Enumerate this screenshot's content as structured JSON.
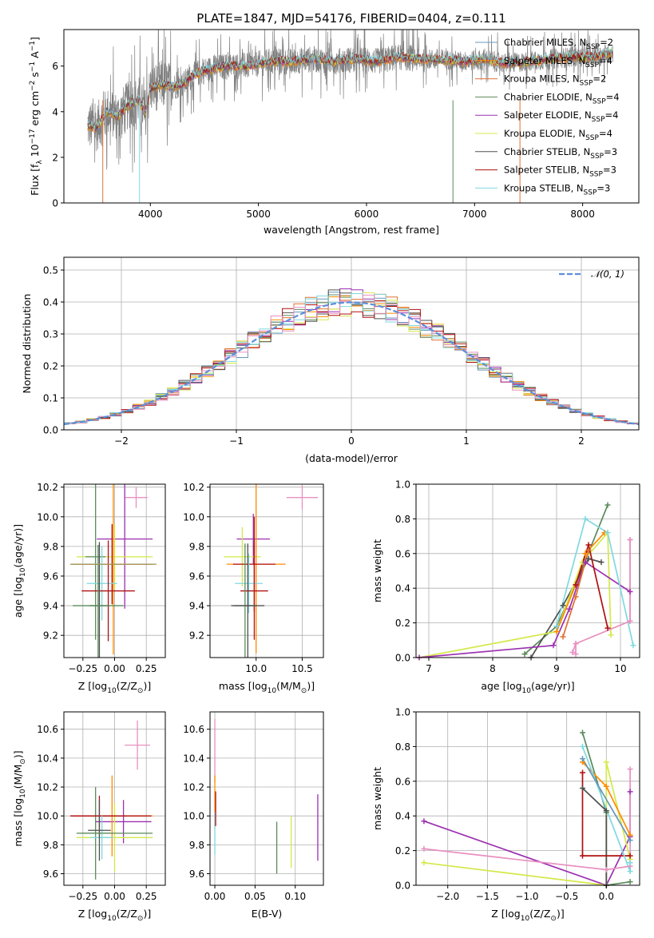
{
  "title": "PLATE=1847, MJD=54176, FIBERID=0404, z=0.111",
  "chart_data": [
    {
      "id": "spectrum",
      "type": "line",
      "xlabel": "wavelength [Angstrom, rest frame]",
      "ylabel": "Flux [f_λ 10^-17 erg cm^-2 s^-1 A^-1]",
      "xlim": [
        3200,
        8520
      ],
      "ylim": [
        0,
        7.6
      ],
      "xticks": [
        4000,
        5000,
        6000,
        7000,
        8000
      ],
      "yticks": [
        0,
        2,
        4,
        6
      ],
      "grid": false,
      "legend": "top-right",
      "data_series": {
        "name": "",
        "color": "#808080",
        "spine_x": [
          3420,
          3500,
          3600,
          3700,
          3800,
          3900,
          3950,
          4000,
          4100,
          4200,
          4300,
          4400,
          4500,
          4700,
          4900,
          5100,
          5300,
          5500,
          5700,
          5900,
          6100,
          6300,
          6500,
          6700,
          6900,
          7100,
          7300,
          7500,
          7700,
          7900,
          8100,
          8280
        ],
        "spine_y": [
          3.4,
          3.3,
          4.0,
          3.8,
          4.3,
          4.5,
          3.9,
          5.0,
          5.2,
          5.1,
          5.2,
          5.6,
          5.8,
          6.0,
          6.0,
          6.2,
          6.2,
          6.3,
          6.2,
          6.3,
          6.2,
          6.4,
          6.3,
          6.3,
          6.2,
          6.3,
          6.1,
          6.2,
          6.3,
          6.4,
          6.4,
          6.6
        ]
      },
      "series": [
        {
          "name": "Chabrier MILES, N_SSP=2",
          "color": "#6897bb"
        },
        {
          "name": "Salpeter MILES, N_SSP=4",
          "color": "#ff8c00"
        },
        {
          "name": "Kroupa MILES, N_SSP=2",
          "color": "#e07030"
        },
        {
          "name": "Chabrier ELODIE, N_SSP=4",
          "color": "#5a8a5a"
        },
        {
          "name": "Salpeter ELODIE, N_SSP=4",
          "color": "#9b30b0"
        },
        {
          "name": "Kroupa ELODIE, N_SSP=4",
          "color": "#d4e84a"
        },
        {
          "name": "Chabrier STELIB, N_SSP=3",
          "color": "#505050"
        },
        {
          "name": "Salpeter STELIB, N_SSP=3",
          "color": "#b01010"
        },
        {
          "name": "Kroupa STELIB, N_SSP=3",
          "color": "#7fd8e0"
        }
      ]
    },
    {
      "id": "residuals",
      "type": "line",
      "xlabel": "(data-model)/error",
      "ylabel": "Normed distribution",
      "xlim": [
        -2.5,
        2.5
      ],
      "ylim": [
        0,
        0.54
      ],
      "xticks": [
        -2,
        -1,
        0,
        1,
        2
      ],
      "xticklabels": [
        "−2",
        "−1",
        "0",
        "1",
        "2"
      ],
      "yticks": [
        0,
        0.1,
        0.2,
        0.3,
        0.4,
        0.5
      ],
      "yticklabels": [
        "0.0",
        "0.1",
        "0.2",
        "0.3",
        "0.4",
        "0.5"
      ],
      "grid": true,
      "legend": "top-right",
      "gaussian_label": "𝒩(0, 1)",
      "gaussian_color": "#5b8fd9",
      "bin_width": 0.1,
      "hist_colors": [
        "#6897bb",
        "#ff8c00",
        "#e07030",
        "#5a8a5a",
        "#9b30b0",
        "#d4e84a",
        "#505050",
        "#b01010",
        "#7fd8e0",
        "#e890c0"
      ]
    },
    {
      "id": "age-vs-Z",
      "type": "scatter",
      "xlabel": "Z [log10(Z/Z⊙)]",
      "ylabel": "age  [log10(age/yr)]",
      "xlim": [
        -0.4,
        0.4
      ],
      "ylim": [
        9.05,
        10.22
      ],
      "xticks": [
        -0.25,
        0,
        0.25
      ],
      "xticklabels": [
        "−0.25",
        "0.00",
        "0.25"
      ],
      "yticks": [
        9.2,
        9.4,
        9.6,
        9.8,
        10.0,
        10.2
      ],
      "yticklabels": [
        "9.2",
        "9.4",
        "9.6",
        "9.8",
        "10.0",
        "10.2"
      ],
      "grid": true,
      "errorbars": [
        {
          "x": 0.17,
          "xerr": 0.09,
          "y": 10.13,
          "yerr": 0.07,
          "color": "#e890c0"
        },
        {
          "x": 0.08,
          "xerr": 0.22,
          "y": 9.85,
          "yerr": 0.47,
          "color": "#9b30b0"
        },
        {
          "x": 0.0,
          "xerr": 0.3,
          "y": 9.73,
          "yerr": 0.22,
          "color": "#d4e84a"
        },
        {
          "x": -0.01,
          "xerr": 0.34,
          "y": 9.68,
          "yerr": 0.61,
          "color": "#ff8c00"
        },
        {
          "x": -0.02,
          "xerr": 0.32,
          "y": 9.68,
          "yerr": 0.27,
          "color": "#b01010"
        },
        {
          "x": -0.15,
          "xerr": 0.08,
          "y": 9.73,
          "yerr": 0.56,
          "color": "#5a8a5a"
        },
        {
          "x": -0.1,
          "xerr": 0.12,
          "y": 9.55,
          "yerr": 0.25,
          "color": "#7fd8e0"
        },
        {
          "x": -0.05,
          "xerr": 0.21,
          "y": 9.5,
          "yerr": 0.34,
          "color": "#b01010"
        },
        {
          "x": -0.12,
          "xerr": 0.08,
          "y": 9.4,
          "yerr": 0.43,
          "color": "#505050"
        },
        {
          "x": -0.13,
          "xerr": 0.2,
          "y": 9.4,
          "yerr": 0.41,
          "color": "#5a8a5a"
        },
        {
          "x": -0.01,
          "xerr": 0.34,
          "y": 9.68,
          "yerr": 0.0,
          "color": "#a0a060"
        }
      ]
    },
    {
      "id": "age-vs-mass",
      "type": "scatter",
      "xlabel": "mass [log10(M/M⊙)]",
      "ylabel": "",
      "xlim": [
        9.5,
        10.73
      ],
      "ylim": [
        9.05,
        10.22
      ],
      "xticks": [
        10.0,
        10.5
      ],
      "xticklabels": [
        "10.0",
        "10.5"
      ],
      "yticks": [
        9.2,
        9.4,
        9.6,
        9.8,
        10.0,
        10.2
      ],
      "yticklabels": [
        "9.2",
        "9.4",
        "9.6",
        "9.8",
        "10.0",
        "10.2"
      ],
      "grid": true,
      "errorbars": [
        {
          "x": 10.5,
          "xerr": 0.17,
          "y": 10.13,
          "yerr": 0.08,
          "color": "#e890c0"
        },
        {
          "x": 9.97,
          "xerr": 0.18,
          "y": 9.85,
          "yerr": 0.17,
          "color": "#9b30b0"
        },
        {
          "x": 9.85,
          "xerr": 0.2,
          "y": 9.73,
          "yerr": 0.2,
          "color": "#d4e84a"
        },
        {
          "x": 10.0,
          "xerr": 0.32,
          "y": 9.68,
          "yerr": 0.6,
          "color": "#ff8c00"
        },
        {
          "x": 9.98,
          "xerr": 0.23,
          "y": 9.68,
          "yerr": 0.32,
          "color": "#b01010"
        },
        {
          "x": 9.92,
          "xerr": 0.15,
          "y": 9.55,
          "yerr": 0.2,
          "color": "#7fd8e0"
        },
        {
          "x": 9.98,
          "xerr": 0.15,
          "y": 9.5,
          "yerr": 0.33,
          "color": "#b01010"
        },
        {
          "x": 9.88,
          "xerr": 0.12,
          "y": 9.4,
          "yerr": 0.42,
          "color": "#5a8a5a"
        },
        {
          "x": 9.91,
          "xerr": 0.18,
          "y": 9.4,
          "yerr": 0.42,
          "color": "#505050"
        }
      ]
    },
    {
      "id": "weight-vs-age",
      "type": "line",
      "xlabel": "age  [log10(age/yr)]",
      "ylabel": "mass weight",
      "xlim": [
        6.8,
        10.3
      ],
      "ylim": [
        0,
        1.0
      ],
      "xticks": [
        7,
        8,
        9,
        10
      ],
      "yticks": [
        0,
        0.2,
        0.4,
        0.6,
        0.8,
        1.0
      ],
      "yticklabels": [
        "0.0",
        "0.2",
        "0.4",
        "0.6",
        "0.8",
        "1.0"
      ],
      "grid": true,
      "series": [
        {
          "color": "#5a8a5a",
          "x": [
            8.5,
            9.0,
            9.3,
            9.8
          ],
          "y": [
            0.02,
            0.18,
            0.42,
            0.88
          ]
        },
        {
          "color": "#505050",
          "x": [
            8.6,
            9.1,
            9.5,
            9.7
          ],
          "y": [
            0.0,
            0.3,
            0.57,
            0.55
          ]
        },
        {
          "color": "#d4e84a",
          "x": [
            6.85,
            9.0,
            9.4,
            9.8,
            9.85
          ],
          "y": [
            0.0,
            0.15,
            0.55,
            0.72,
            0.13
          ]
        },
        {
          "color": "#9b30b0",
          "x": [
            6.85,
            8.95,
            9.2,
            9.45,
            10.15
          ],
          "y": [
            0.0,
            0.07,
            0.28,
            0.55,
            0.38
          ]
        },
        {
          "color": "#ff8c00",
          "x": [
            9.0,
            9.3,
            9.45,
            9.75
          ],
          "y": [
            0.15,
            0.42,
            0.6,
            0.72
          ]
        },
        {
          "color": "#e07030",
          "x": [
            9.1,
            9.3,
            9.5
          ],
          "y": [
            0.12,
            0.35,
            0.62
          ]
        },
        {
          "color": "#b01010",
          "x": [
            9.3,
            9.5,
            9.8
          ],
          "y": [
            0.42,
            0.65,
            0.17
          ]
        },
        {
          "color": "#7fd8e0",
          "x": [
            9.0,
            9.45,
            9.8,
            10.2
          ],
          "y": [
            0.18,
            0.8,
            0.72,
            0.07
          ]
        },
        {
          "color": "#e890c0",
          "x": [
            9.25,
            9.3,
            10.15,
            10.15
          ],
          "y": [
            0.03,
            0.08,
            0.21,
            0.68
          ]
        },
        {
          "color": "#e890c0",
          "x": [
            9.3,
            9.3
          ],
          "y": [
            0.02,
            0.08
          ]
        },
        {
          "color": "#e890c0",
          "x": [
            10.15,
            10.15
          ],
          "y": [
            0.21,
            0.68
          ]
        }
      ]
    },
    {
      "id": "mass-vs-Z",
      "type": "scatter",
      "xlabel": "Z [log10(Z/Z⊙)]",
      "ylabel": "mass [log10(M/M⊙)]",
      "xlim": [
        -0.4,
        0.4
      ],
      "ylim": [
        9.52,
        10.72
      ],
      "xticks": [
        -0.25,
        0,
        0.25
      ],
      "xticklabels": [
        "−0.25",
        "0.00",
        "0.25"
      ],
      "yticks": [
        9.6,
        9.8,
        10.0,
        10.2,
        10.4,
        10.6
      ],
      "yticklabels": [
        "9.6",
        "9.8",
        "10.0",
        "10.2",
        "10.4",
        "10.6"
      ],
      "grid": true,
      "errorbars": [
        {
          "x": 0.18,
          "xerr": 0.1,
          "y": 10.49,
          "yerr": 0.17,
          "color": "#e890c0"
        },
        {
          "x": 0.07,
          "xerr": 0.22,
          "y": 9.96,
          "yerr": 0.15,
          "color": "#9b30b0"
        },
        {
          "x": 0.0,
          "xerr": 0.3,
          "y": 9.85,
          "yerr": 0.24,
          "color": "#d4e84a"
        },
        {
          "x": -0.02,
          "xerr": 0.32,
          "y": 10.0,
          "yerr": 0.28,
          "color": "#ff8c00"
        },
        {
          "x": -0.03,
          "xerr": 0.32,
          "y": 10.0,
          "yerr": 0.0,
          "color": "#b01010"
        },
        {
          "x": -0.15,
          "xerr": 0.12,
          "y": 9.88,
          "yerr": 0.32,
          "color": "#5a8a5a"
        },
        {
          "x": -0.12,
          "xerr": 0.22,
          "y": 10.0,
          "yerr": 0.14,
          "color": "#b01010"
        },
        {
          "x": -0.1,
          "xerr": 0.09,
          "y": 9.85,
          "yerr": 0.15,
          "color": "#7fd8e0"
        },
        {
          "x": -0.12,
          "xerr": 0.09,
          "y": 9.9,
          "yerr": 0.21,
          "color": "#505050"
        },
        {
          "x": 0.0,
          "xerr": 0.3,
          "y": 9.88,
          "yerr": 0.0,
          "color": "#5a8a5a"
        }
      ]
    },
    {
      "id": "mass-vs-ebv",
      "type": "scatter",
      "xlabel": "E(B-V)",
      "ylabel": "",
      "xlim": [
        -0.006,
        0.135
      ],
      "ylim": [
        9.52,
        10.72
      ],
      "xticks": [
        0.0,
        0.05,
        0.1
      ],
      "xticklabels": [
        "0.00",
        "0.05",
        "0.10"
      ],
      "yticks": [
        9.6,
        9.8,
        10.0,
        10.2,
        10.4,
        10.6
      ],
      "yticklabels": [
        "9.6",
        "9.8",
        "10.0",
        "10.2",
        "10.4",
        "10.6"
      ],
      "grid": true,
      "errorbars": [
        {
          "x": 0.0,
          "xerr": 0.0,
          "y": 10.45,
          "yerr": 0.22,
          "color": "#e890c0"
        },
        {
          "x": 0.0,
          "xerr": 0.0,
          "y": 10.1,
          "yerr": 0.18,
          "color": "#ff8c00"
        },
        {
          "x": 0.0,
          "xerr": 0.0,
          "y": 9.88,
          "yerr": 0.15,
          "color": "#7fd8e0"
        },
        {
          "x": 0.001,
          "xerr": 0.0,
          "y": 10.05,
          "yerr": 0.12,
          "color": "#b01010"
        },
        {
          "x": 0.077,
          "xerr": 0.0,
          "y": 9.78,
          "yerr": 0.18,
          "color": "#5a8a5a"
        },
        {
          "x": 0.095,
          "xerr": 0.0,
          "y": 9.82,
          "yerr": 0.18,
          "color": "#d4e84a"
        },
        {
          "x": 0.128,
          "xerr": 0.0,
          "y": 9.92,
          "yerr": 0.23,
          "color": "#9b30b0"
        }
      ]
    },
    {
      "id": "weight-vs-Z",
      "type": "line",
      "xlabel": "Z [log10(Z/Z⊙)]",
      "ylabel": "mass weight",
      "xlim": [
        -2.4,
        0.42
      ],
      "ylim": [
        0,
        1.0
      ],
      "xticks": [
        -2.0,
        -1.5,
        -1.0,
        -0.5,
        0.0
      ],
      "xticklabels": [
        "−2.0",
        "−1.5",
        "−1.0",
        "−0.5",
        "0.0"
      ],
      "yticks": [
        0,
        0.2,
        0.4,
        0.6,
        0.8,
        1.0
      ],
      "yticklabels": [
        "0.0",
        "0.2",
        "0.4",
        "0.6",
        "0.8",
        "1.0"
      ],
      "grid": true,
      "series": [
        {
          "color": "#9b30b0",
          "x": [
            -2.3,
            0.0,
            0.3,
            0.3
          ],
          "y": [
            0.37,
            0.0,
            0.28,
            0.54
          ]
        },
        {
          "color": "#e890c0",
          "x": [
            -2.3,
            0.0,
            0.3,
            0.3
          ],
          "y": [
            0.21,
            0.09,
            0.11,
            0.67
          ]
        },
        {
          "color": "#d4e84a",
          "x": [
            -2.3,
            0.0,
            0.0,
            0.3
          ],
          "y": [
            0.13,
            0.0,
            0.71,
            0.15
          ]
        },
        {
          "color": "#5a8a5a",
          "x": [
            -0.3,
            0.0,
            0.0,
            0.3
          ],
          "y": [
            0.88,
            0.42,
            0.0,
            0.02
          ]
        },
        {
          "color": "#505050",
          "x": [
            -0.3,
            0.0,
            0.0
          ],
          "y": [
            0.56,
            0.43,
            0.0
          ]
        },
        {
          "color": "#ff8c00",
          "x": [
            -0.3,
            0.0,
            0.3
          ],
          "y": [
            0.71,
            0.57,
            0.29
          ]
        },
        {
          "color": "#b01010",
          "x": [
            -0.3,
            -0.3,
            0.3
          ],
          "y": [
            0.65,
            0.17,
            0.17
          ]
        },
        {
          "color": "#7fd8e0",
          "x": [
            -0.3,
            0.3,
            0.3
          ],
          "y": [
            0.8,
            0.08,
            0.13
          ]
        },
        {
          "color": "#6897bb",
          "x": [
            -0.3,
            0.3
          ],
          "y": [
            0.73,
            0.26
          ]
        }
      ]
    }
  ]
}
